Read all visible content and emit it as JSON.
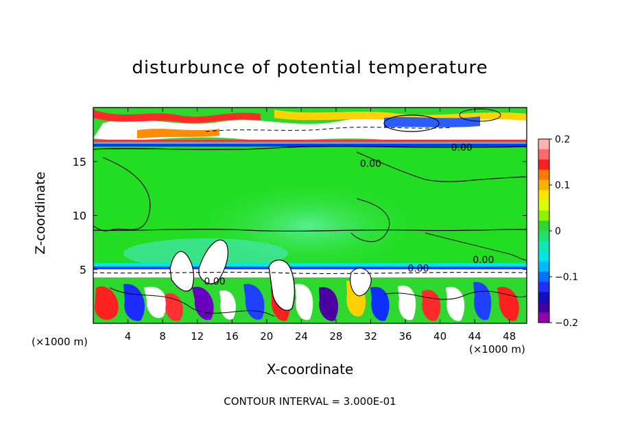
{
  "title": "disturbunce of potential temperature",
  "contour_interval": "CONTOUR INTERVAL = 3.000E-01",
  "axis_unit_left": "(×1000 m)",
  "axis_unit_right": "(×1000 m)",
  "colors": {
    "field_neutral": "#22dd22",
    "stable_layer": "#00e5e5",
    "positive_strong": "#ff2020",
    "negative_strong": "#2020ff"
  },
  "chart_data": {
    "type": "heatmap",
    "title": "disturbunce of potential temperature",
    "xlabel": "X-coordinate",
    "ylabel": "Z-coordinate",
    "xlim": [
      0,
      50
    ],
    "ylim": [
      0,
      20
    ],
    "x_ticks": [
      4,
      8,
      12,
      16,
      20,
      24,
      28,
      32,
      36,
      40,
      44,
      48
    ],
    "y_ticks": [
      5,
      10,
      15
    ],
    "colorbar": {
      "min": -0.2,
      "max": 0.2,
      "tick_values": [
        0.2,
        0.1,
        0,
        -0.1,
        -0.2
      ],
      "tick_labels": [
        "0.2",
        "0.1",
        "0",
        "−0.1",
        "−0.2"
      ],
      "colors": [
        "#ffb0b0",
        "#ff6a6a",
        "#ff1f1f",
        "#ff7a00",
        "#ffb000",
        "#ffe600",
        "#d8ff00",
        "#8cf200",
        "#2ed82e",
        "#20e070",
        "#10e8b0",
        "#00e6e6",
        "#00b8ff",
        "#0070ff",
        "#2030ff",
        "#1010c0",
        "#4000a0",
        "#9000b0"
      ]
    },
    "contour_labels": [
      {
        "text": "0.00",
        "x": 42.5,
        "z": 16.0
      },
      {
        "text": "0.00",
        "x": 32.0,
        "z": 14.5
      },
      {
        "text": "0.00",
        "x": 45.0,
        "z": 5.6
      },
      {
        "text": "0.00",
        "x": 37.5,
        "z": 4.8
      },
      {
        "text": "0.00",
        "x": 14.0,
        "z": 3.6
      }
    ],
    "grid": false
  }
}
